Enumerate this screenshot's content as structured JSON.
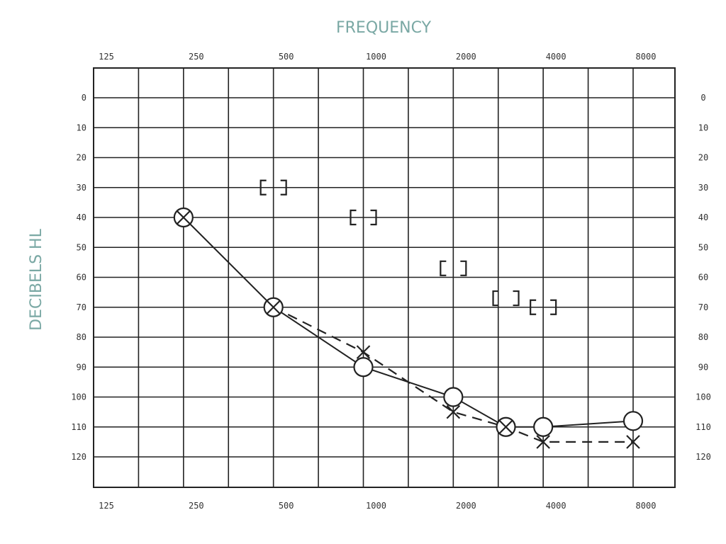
{
  "chart_data": {
    "type": "line",
    "title": "FREQUENCY",
    "xlabel": "FREQUENCY",
    "ylabel": "DECIBELS HL",
    "x_scale": "log2",
    "x_ticks": [
      "125",
      "250",
      "500",
      "1000",
      "2000",
      "4000",
      "8000"
    ],
    "y_ticks": [
      "0",
      "10",
      "20",
      "30",
      "40",
      "50",
      "60",
      "70",
      "80",
      "90",
      "100",
      "110",
      "120"
    ],
    "ylim": [
      0,
      120
    ],
    "y_inverted": true,
    "grid": true,
    "series": [
      {
        "symbol": "O-X combined / circle",
        "line": "solid",
        "points": [
          {
            "x": 250,
            "y": 40,
            "symbol": "circle-x"
          },
          {
            "x": 500,
            "y": 70,
            "symbol": "circle-x"
          },
          {
            "x": 1000,
            "y": 90,
            "symbol": "circle"
          },
          {
            "x": 2000,
            "y": 100,
            "symbol": "circle"
          },
          {
            "x": 3000,
            "y": 110,
            "symbol": "circle-x"
          },
          {
            "x": 4000,
            "y": 110,
            "symbol": "circle"
          },
          {
            "x": 8000,
            "y": 108,
            "symbol": "circle"
          }
        ]
      },
      {
        "symbol": "X",
        "line": "dashed",
        "points": [
          {
            "x": 500,
            "y": 70
          },
          {
            "x": 1000,
            "y": 85
          },
          {
            "x": 2000,
            "y": 105
          },
          {
            "x": 3000,
            "y": 110
          },
          {
            "x": 4000,
            "y": 115
          },
          {
            "x": 8000,
            "y": 115
          }
        ]
      },
      {
        "symbol": "bracket",
        "line": "none",
        "points": [
          {
            "x": 500,
            "y": 30
          },
          {
            "x": 1000,
            "y": 40
          },
          {
            "x": 2000,
            "y": 57
          },
          {
            "x": 3000,
            "y": 67
          },
          {
            "x": 4000,
            "y": 70
          }
        ]
      }
    ]
  }
}
